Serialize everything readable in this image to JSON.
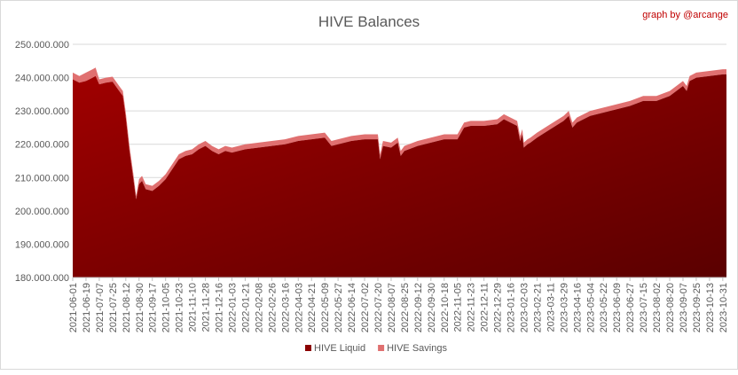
{
  "chart_data": {
    "type": "area",
    "title": "HIVE Balances",
    "credit": "graph by @arcange",
    "y_ticks": [
      "180.000.000",
      "190.000.000",
      "200.000.000",
      "210.000.000",
      "220.000.000",
      "230.000.000",
      "240.000.000",
      "250.000.000"
    ],
    "ylim": [
      180000000,
      250000000
    ],
    "x_ticks": [
      "2021-06-01",
      "2021-06-19",
      "2021-07-07",
      "2021-07-25",
      "2021-08-12",
      "2021-08-30",
      "2021-09-17",
      "2021-10-05",
      "2021-10-23",
      "2021-11-10",
      "2021-11-28",
      "2021-12-16",
      "2022-01-03",
      "2022-01-21",
      "2022-02-08",
      "2022-02-26",
      "2022-03-16",
      "2022-04-03",
      "2022-04-21",
      "2022-05-09",
      "2022-05-27",
      "2022-06-14",
      "2022-07-02",
      "2022-07-20",
      "2022-08-07",
      "2022-08-25",
      "2022-09-12",
      "2022-09-30",
      "2022-10-18",
      "2022-11-05",
      "2022-11-23",
      "2022-12-11",
      "2022-12-29",
      "2023-01-16",
      "2023-02-03",
      "2023-02-21",
      "2023-03-11",
      "2023-03-29",
      "2023-04-16",
      "2023-05-04",
      "2023-05-22",
      "2023-06-09",
      "2023-06-27",
      "2023-07-15",
      "2023-08-02",
      "2023-08-20",
      "2023-09-07",
      "2023-09-25",
      "2023-10-13",
      "2023-10-31"
    ],
    "x_tick_labels": [
      "2021-06-01",
      "2021-06-19",
      "2021-07-07",
      "2021-07-25",
      "2021-08-12",
      "2021-08-30",
      "2021-09-17",
      "2021-10-05",
      "2021-10-23",
      "2021-11-10",
      "2021-11-28",
      "2021-12-16",
      "2022-01-03",
      "2022-01-21",
      "2022-02-08",
      "2022-02-26",
      "2022-03-16",
      "2022-04-03",
      "2022-04-21",
      "2022-05-09",
      "2022-05-27",
      "2022-06-14",
      "2022-07-02",
      "2022-07-20",
      "2022-08-07",
      "2022-08-25",
      "2022-09-12",
      "2022-09-30",
      "2022-10-18",
      "2022-11-05",
      "2022-11-23",
      "2022-12-11",
      "2022-12-29",
      "2023-01-16",
      "2023-02-03",
      "2023-02-21",
      "2023-03-11",
      "2023-03-29",
      "2023-04-16",
      "2023-05-04",
      "2023-05-22",
      "2023-06-09",
      "2023-06-27",
      "2023-07-15",
      "2023-08-02",
      "2023-08-20",
      "2023-09-07",
      "2023-09-25",
      "2023-10-13",
      "2023-10-31"
    ],
    "x_tick_display": [
      "2021-06-01",
      "2021-06-19",
      "2021-07-07",
      "2021-07-25",
      "2021-08-12",
      "2021-08-30",
      "2021-09-17",
      "2021-10-05",
      "2021-10-23",
      "2021-11-10",
      "2021-11-28",
      "2021-12-16",
      "2022-01-03",
      "2022-01-21",
      "2022-02-08",
      "2022-02-26",
      "2022-03-16",
      "2022-04-03",
      "2022-04-21",
      "2022-05-09",
      "2022-05-27",
      "2022-06-14",
      "2022-07-02",
      "2022-07-20",
      "2022-08-07",
      "2022-08-25",
      "2022-09-12",
      "2022-09-30",
      "2022-10-18",
      "2022-11-05",
      "2022-11-23",
      "2022-12-11",
      "2022-12-29",
      "2023-01-16",
      "2023-02-03",
      "2023-02-21",
      "2023-03-11",
      "2023-03-29",
      "2023-04-16",
      "2023-05-04",
      "2023-05-22",
      "2023-06-09",
      "2023-06-27",
      "2023-07-15",
      "2023-08-02",
      "2023-08-20",
      "2023-09-07",
      "2023-09-25",
      "2023-10-13",
      "2023-10-31"
    ],
    "series": [
      {
        "name": "HIVE Liquid",
        "color": "#8b0000",
        "x": [
          "2021-06-01",
          "2021-06-10",
          "2021-06-19",
          "2021-06-28",
          "2021-07-02",
          "2021-07-07",
          "2021-07-16",
          "2021-07-25",
          "2021-08-03",
          "2021-08-08",
          "2021-08-12",
          "2021-08-17",
          "2021-08-22",
          "2021-08-26",
          "2021-08-30",
          "2021-09-03",
          "2021-09-08",
          "2021-09-17",
          "2021-09-26",
          "2021-10-05",
          "2021-10-14",
          "2021-10-23",
          "2021-11-01",
          "2021-11-10",
          "2021-11-19",
          "2021-11-28",
          "2021-12-07",
          "2021-12-16",
          "2021-12-25",
          "2022-01-03",
          "2022-01-12",
          "2022-01-21",
          "2022-02-08",
          "2022-02-26",
          "2022-03-16",
          "2022-04-03",
          "2022-04-21",
          "2022-05-09",
          "2022-05-18",
          "2022-05-27",
          "2022-06-14",
          "2022-07-02",
          "2022-07-20",
          "2022-07-23",
          "2022-07-27",
          "2022-08-07",
          "2022-08-16",
          "2022-08-20",
          "2022-08-25",
          "2022-09-12",
          "2022-09-30",
          "2022-10-18",
          "2022-11-05",
          "2022-11-14",
          "2022-11-23",
          "2022-12-11",
          "2022-12-29",
          "2023-01-07",
          "2023-01-16",
          "2023-01-25",
          "2023-01-29",
          "2023-02-01",
          "2023-02-03",
          "2023-02-08",
          "2023-02-12",
          "2023-02-21",
          "2023-03-11",
          "2023-03-29",
          "2023-04-05",
          "2023-04-10",
          "2023-04-16",
          "2023-05-04",
          "2023-05-22",
          "2023-06-09",
          "2023-06-27",
          "2023-07-15",
          "2023-08-02",
          "2023-08-20",
          "2023-09-07",
          "2023-09-12",
          "2023-09-16",
          "2023-09-25",
          "2023-10-13",
          "2023-10-31",
          "2023-11-05"
        ],
        "values": [
          239500000,
          238500000,
          239000000,
          240000000,
          240500000,
          238000000,
          238500000,
          238800000,
          236000000,
          234500000,
          228000000,
          218000000,
          210000000,
          203500000,
          208000000,
          209000000,
          206500000,
          206000000,
          207500000,
          209500000,
          212500000,
          215500000,
          216500000,
          217000000,
          218500000,
          219500000,
          218000000,
          217000000,
          218000000,
          217500000,
          218000000,
          218500000,
          219000000,
          219500000,
          220000000,
          221000000,
          221500000,
          222000000,
          219500000,
          220000000,
          221000000,
          221500000,
          221500000,
          215500000,
          219500000,
          219000000,
          220500000,
          216500000,
          218000000,
          219500000,
          220500000,
          221500000,
          221500000,
          225000000,
          225500000,
          225500000,
          226000000,
          227500000,
          226500000,
          225500000,
          221000000,
          223000000,
          219000000,
          220000000,
          220500000,
          222000000,
          224500000,
          227000000,
          228500000,
          225000000,
          226500000,
          228500000,
          229500000,
          230500000,
          231500000,
          233000000,
          233000000,
          234500000,
          237500000,
          236000000,
          239000000,
          240000000,
          240500000,
          241000000,
          241000000
        ]
      },
      {
        "name": "HIVE Savings",
        "color": "#e07070",
        "values": [
          2000000,
          2000000,
          2500000,
          2500000,
          2500000,
          1500000,
          1500000,
          1500000,
          1500000,
          1500000,
          1500000,
          1500000,
          1500000,
          1000000,
          1500000,
          1500000,
          1500000,
          1500000,
          1500000,
          1500000,
          1500000,
          1500000,
          1500000,
          1500000,
          1500000,
          1500000,
          1500000,
          1500000,
          1500000,
          1500000,
          1500000,
          1500000,
          1500000,
          1500000,
          1500000,
          1500000,
          1500000,
          1500000,
          1500000,
          1500000,
          1500000,
          1500000,
          1500000,
          1500000,
          1500000,
          1500000,
          1500000,
          1500000,
          1500000,
          1500000,
          1500000,
          1500000,
          1500000,
          1500000,
          1500000,
          1500000,
          1500000,
          1500000,
          1500000,
          1500000,
          1500000,
          1500000,
          1500000,
          1500000,
          1500000,
          1500000,
          1500000,
          1500000,
          1500000,
          1500000,
          1500000,
          1500000,
          1500000,
          1500000,
          1500000,
          1500000,
          1500000,
          1500000,
          1500000,
          1500000,
          1500000,
          1500000,
          1500000,
          1500000,
          1500000
        ]
      }
    ],
    "legend": "bottom",
    "grid": true
  }
}
